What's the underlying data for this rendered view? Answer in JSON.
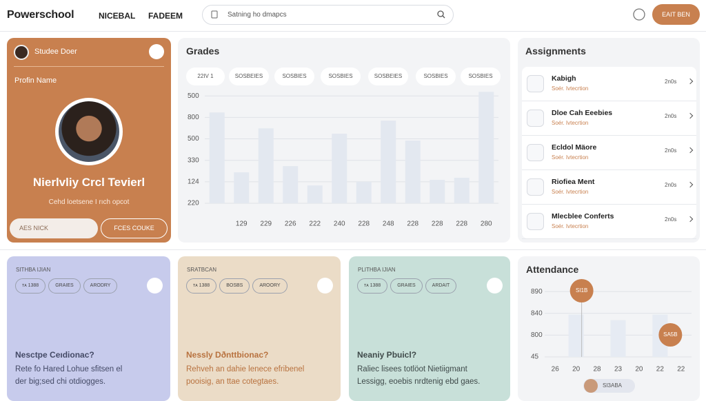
{
  "header": {
    "brand": "Powerschool",
    "nav": [
      "NICEBAL",
      "FADEEM"
    ],
    "search_placeholder": "Satning ho dmapcs",
    "button": "EAIT BEN"
  },
  "profile": {
    "header_name": "Studee Doer",
    "field_label": "Profin Name",
    "name": "Nierlvliy Crcl Tevierl",
    "subtitle": "Cehd loetsene I rıch opcot",
    "buttons": [
      "AES NICK",
      "FCES COUKE"
    ]
  },
  "grades": {
    "title": "Grades",
    "filters": [
      "22IV 1",
      "SOSBEIES",
      "SOSBIES",
      "SOSBIES",
      "SOSBEIES",
      "SOSBIES",
      "SOSBIES"
    ],
    "chart": {
      "type": "bar",
      "categories": [
        null,
        "129",
        "229",
        "226",
        "222",
        "240",
        "228",
        "248",
        "228",
        "228",
        "228",
        "280"
      ],
      "values": [
        4.23,
        1.44,
        3.49,
        1.73,
        0.83,
        3.24,
        0.99,
        3.85,
        2.92,
        1.09,
        1.19,
        5.19
      ],
      "color": "#e3e8f0",
      "ylim": [
        0,
        5.2
      ],
      "yticks": [
        {
          "value": 0,
          "label": "220"
        },
        {
          "value": 1,
          "label": "124"
        },
        {
          "value": 2,
          "label": "330"
        },
        {
          "value": 3,
          "label": "500"
        },
        {
          "value": 4,
          "label": "800"
        },
        {
          "value": 5,
          "label": "500"
        }
      ],
      "grid": true
    }
  },
  "assignments": {
    "title": "Assignments",
    "items": [
      {
        "title": "Kabigh",
        "subtitle": "Soér. Ivtecrtion",
        "meta": "2n0s"
      },
      {
        "title": "Dloe Cah Eeebies",
        "subtitle": "Soér. Ivtecrtion",
        "meta": "2n0s"
      },
      {
        "title": "Ecldol Mäore",
        "subtitle": "Soér. Ivtecrtion",
        "meta": "2n0s"
      },
      {
        "title": "Riofiea Ment",
        "subtitle": "Soér. Ivtecrtion",
        "meta": "2n0s"
      },
      {
        "title": "Mlecblee Conferts",
        "subtitle": "Soér. Ivtecrtion",
        "meta": "2n0s"
      }
    ]
  },
  "cards": [
    {
      "label": "SITHBA IJIAN",
      "tags": [
        "ᴛᴀ 1388",
        "GRAIES",
        "ARODRY"
      ],
      "title": "Nesctpe Ceıdionac?",
      "lines": [
        "Rete fo Hared Lohue sfitsen el",
        "der big;sed chi otdiogges."
      ]
    },
    {
      "label": "SRATBCAN",
      "tags": [
        "ᴛᴀ 1388",
        "BOSBS",
        "AROORY"
      ],
      "title": "Nessly Dðnttbionac?",
      "lines": [
        "Rehveh an dahie lenece efribenel",
        "pooisig, an ttae cotegtaes."
      ]
    },
    {
      "label": "PLITHBA IJIAN",
      "tags": [
        "ᴛᴀ 1388",
        "GRAIES",
        "ARDAIT"
      ],
      "title": "Neaniy Pbuicl?",
      "lines": [
        "Raliec lisees totlöot Nietiigmant",
        "Lessigg, eoebis nrdtenig ebd gaes."
      ]
    }
  ],
  "attendance": {
    "title": "Attendance",
    "chart": {
      "type": "bar",
      "categories": [
        "26",
        "20",
        "28",
        "23",
        "20",
        "22",
        "22"
      ],
      "values": [
        null,
        1.94,
        null,
        1.69,
        null,
        1.94,
        null
      ],
      "color": "#e6ebf3",
      "ylim": [
        0,
        3.1
      ],
      "yticks": [
        {
          "value": 0,
          "label": "45"
        },
        {
          "value": 1,
          "label": "800"
        },
        {
          "value": 2,
          "label": "840"
        },
        {
          "value": 3,
          "label": "890"
        }
      ],
      "grid": true
    },
    "annotations": [
      "SI1B",
      "SA5B"
    ],
    "footer_tag": "SI3ABA"
  }
}
